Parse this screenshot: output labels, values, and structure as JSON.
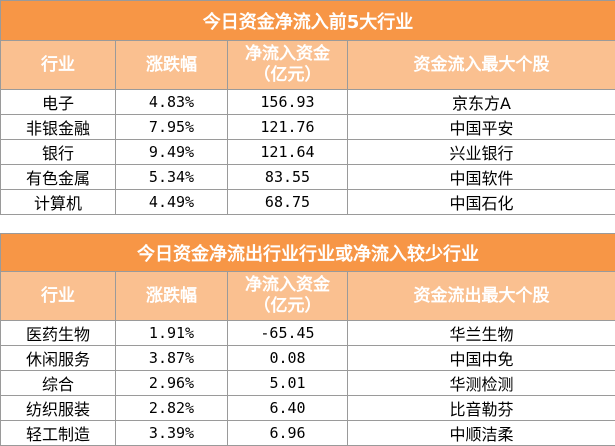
{
  "inflow_table": {
    "title": "今日资金净流入前5大行业",
    "headers": [
      "行业",
      "涨跌幅",
      "净流入资金（亿元）",
      "资金流入最大个股"
    ],
    "rows": [
      {
        "industry": "电子",
        "change": "4.83%",
        "net_flow": "156.93",
        "top_stock": "京东方A"
      },
      {
        "industry": "非银金融",
        "change": "7.95%",
        "net_flow": "121.76",
        "top_stock": "中国平安"
      },
      {
        "industry": "银行",
        "change": "9.49%",
        "net_flow": "121.64",
        "top_stock": "兴业银行"
      },
      {
        "industry": "有色金属",
        "change": "5.34%",
        "net_flow": "83.55",
        "top_stock": "中国软件"
      },
      {
        "industry": "计算机",
        "change": "4.49%",
        "net_flow": "68.75",
        "top_stock": "中国石化"
      }
    ]
  },
  "outflow_table": {
    "title": "今日资金净流出行业行业或净流入较少行业",
    "headers": [
      "行业",
      "涨跌幅",
      "净流入资金（亿元）",
      "资金流出最大个股"
    ],
    "rows": [
      {
        "industry": "医药生物",
        "change": "1.91%",
        "net_flow": "-65.45",
        "top_stock": "华兰生物"
      },
      {
        "industry": "休闲服务",
        "change": "3.87%",
        "net_flow": "0.08",
        "top_stock": "中国中免"
      },
      {
        "industry": "综合",
        "change": "2.96%",
        "net_flow": "5.01",
        "top_stock": "华测检测"
      },
      {
        "industry": "纺织服装",
        "change": "2.82%",
        "net_flow": "6.40",
        "top_stock": "比音勒芬"
      },
      {
        "industry": "轻工制造",
        "change": "3.39%",
        "net_flow": "6.96",
        "top_stock": "中顺洁柔"
      }
    ]
  },
  "colors": {
    "title_bg": "#f79646",
    "header_bg": "#fac090",
    "header_text": "#ffffff"
  }
}
